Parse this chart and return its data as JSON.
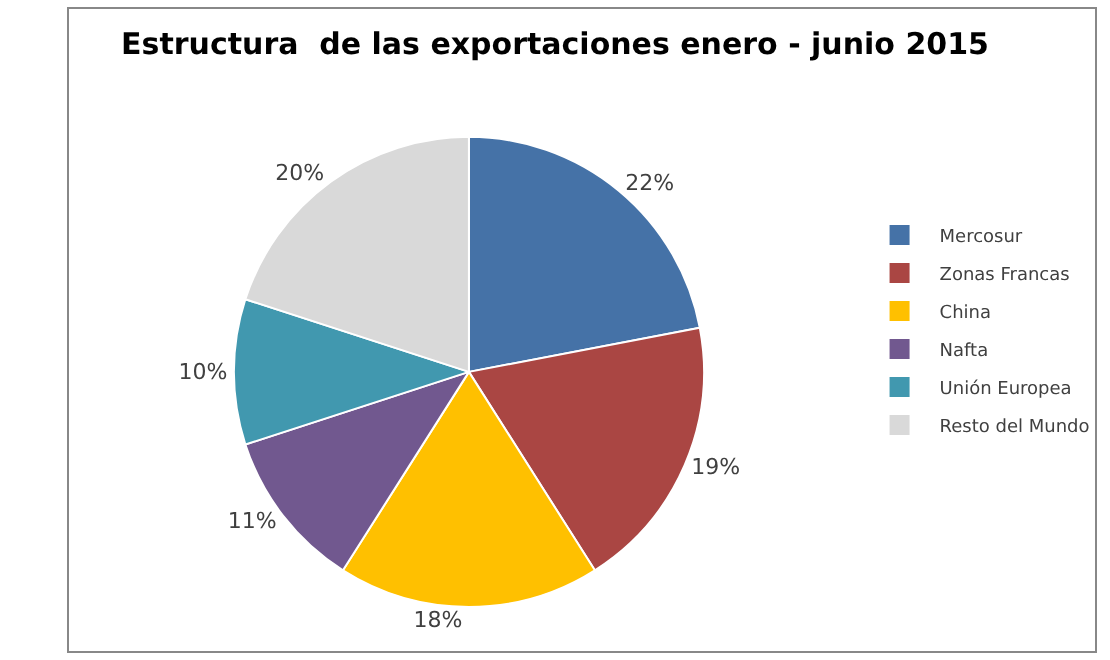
{
  "chart_data": {
    "type": "pie",
    "title": "Estructura  de las exportaciones enero - junio 2015",
    "categories": [
      "Mercosur",
      "Zonas Francas",
      "China",
      "Nafta",
      "Unión Europea",
      "Resto del Mundo"
    ],
    "values": [
      22,
      19,
      18,
      11,
      10,
      20
    ],
    "value_labels": [
      "22%",
      "19%",
      "18%",
      "11%",
      "10%",
      "20%"
    ],
    "colors": [
      "#4572a7",
      "#aa4643",
      "#ffc000",
      "#71588f",
      "#4198af",
      "#d9d9d9"
    ],
    "legend": "right"
  }
}
